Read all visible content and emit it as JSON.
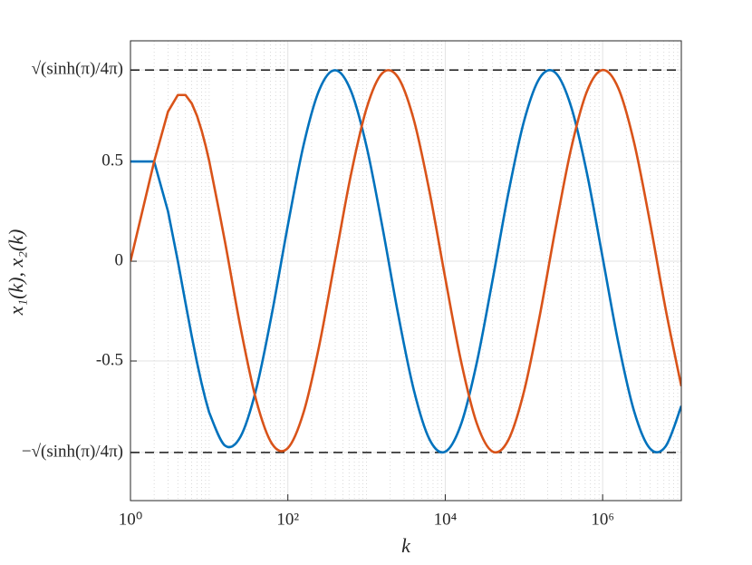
{
  "chart_data": {
    "type": "line",
    "xscale": "log",
    "xlabel": "k",
    "ylabel": "x₁(k),  x₂(k)",
    "xlim": [
      1,
      10000000
    ],
    "ylim": [
      -1.2,
      1.105
    ],
    "xticks": [
      {
        "value": 1,
        "label": "10⁰"
      },
      {
        "value": 100,
        "label": "10²"
      },
      {
        "value": 10000,
        "label": "10⁴"
      },
      {
        "value": 1000000,
        "label": "10⁶"
      }
    ],
    "xminorticks": [
      2,
      3,
      4,
      5,
      6,
      7,
      8,
      9,
      10,
      20,
      30,
      40,
      50,
      60,
      70,
      80,
      90,
      200,
      300,
      400,
      500,
      600,
      700,
      800,
      900,
      1000,
      2000,
      3000,
      4000,
      5000,
      6000,
      7000,
      8000,
      9000,
      20000,
      30000,
      40000,
      50000,
      60000,
      70000,
      80000,
      90000,
      100000,
      200000,
      300000,
      400000,
      500000,
      600000,
      700000,
      800000,
      900000,
      2000000,
      3000000,
      4000000,
      5000000,
      6000000,
      7000000,
      8000000,
      9000000
    ],
    "yticks": [
      {
        "value": -0.9587,
        "label": "−√(sinh(π)/4π)"
      },
      -0.5,
      0,
      0.5,
      {
        "value": 0.9587,
        "label": "√(sinh(π)/4π)"
      }
    ],
    "hlines": [
      0.9587,
      -0.9587
    ],
    "grid": true,
    "x": [
      1,
      2,
      3,
      4,
      5,
      6,
      7,
      8,
      9,
      10,
      15.85,
      25.12,
      39.81,
      63.1,
      100,
      158.5,
      251.2,
      398.1,
      631,
      1000,
      1585,
      2512,
      3981,
      6310,
      10000,
      15849,
      25119,
      39811,
      63096,
      100000,
      158489,
      251189,
      398107,
      630957,
      1000000,
      1584893,
      2511886,
      3981072,
      6309573,
      10000000
    ],
    "series": [
      {
        "color": "#0072BD",
        "values": [
          0.5,
          0.5,
          0.25,
          0,
          -0.2083,
          -0.375,
          -0.5069,
          -0.6111,
          -0.6932,
          -0.7577,
          -0.9237,
          -0.8781,
          -0.6372,
          -0.2565,
          0.1805,
          0.5828,
          0.8597,
          0.9576,
          0.8557,
          0.5753,
          0.1747,
          -0.2625,
          -0.6444,
          -0.893,
          -0.955,
          -0.818,
          -0.5097,
          -0.0969,
          0.3371,
          0.7008,
          0.9185,
          0.9449,
          0.7743,
          0.4421,
          0.0185,
          -0.4096,
          -0.7521,
          -0.9379,
          -0.9284,
          -0.7256
        ]
      },
      {
        "color": "#D95319",
        "values": [
          0,
          0.5,
          0.75,
          0.8333,
          0.8333,
          0.7917,
          0.7292,
          0.6568,
          0.5804,
          0.5033,
          0.0997,
          -0.3351,
          -0.7002,
          -0.9158,
          -0.9366,
          -0.7575,
          -0.42,
          0.0057,
          0.4309,
          0.7665,
          0.9427,
          0.9221,
          0.7098,
          0.3487,
          -0.0845,
          -0.5001,
          -0.8119,
          -0.9538,
          -0.8975,
          -0.6541,
          -0.2746,
          0.1622,
          0.5652,
          0.8507,
          0.9585,
          0.8669,
          0.5945,
          0.1985,
          -0.2389,
          -0.6268
        ]
      }
    ]
  }
}
